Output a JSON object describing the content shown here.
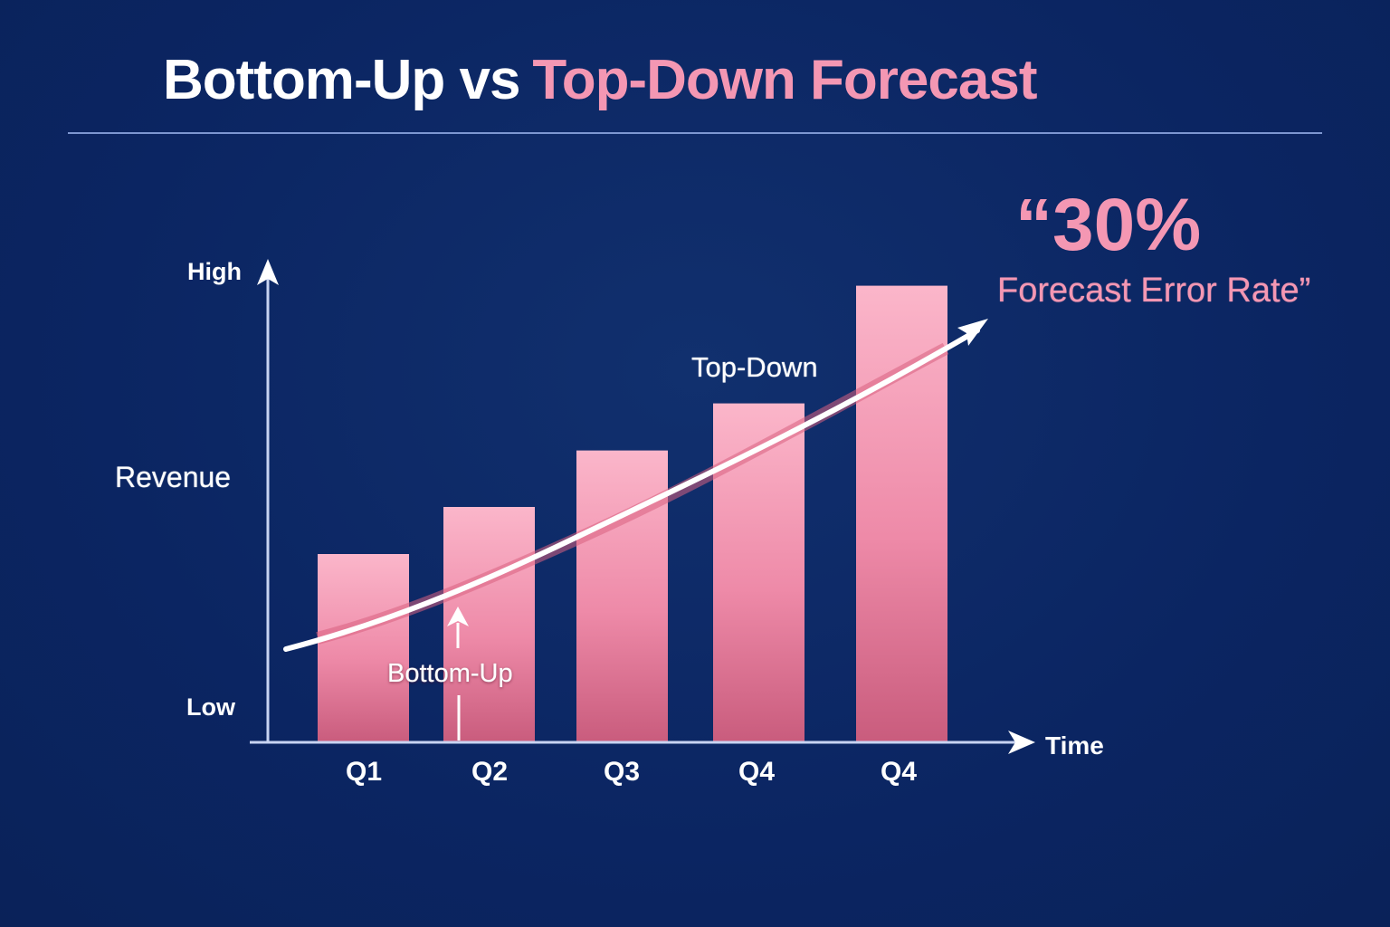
{
  "title": {
    "part1": "Bottom-Up vs",
    "part2": "Top-Down Forecast"
  },
  "colors": {
    "background": "#0c2766",
    "accent_pink": "#f497b3",
    "bar_top": "#fbb6ca",
    "bar_bottom": "#c95c7d",
    "axis": "#c8d4f2",
    "text": "#ffffff"
  },
  "axes": {
    "y_high": "High",
    "y_label": "Revenue",
    "y_low": "Low",
    "x_label": "Time"
  },
  "annotations": {
    "top_down": "Top-Down",
    "bottom_up": "Bottom-Up"
  },
  "callout": {
    "big": "“30%",
    "sub": "Forecast Error Rate”"
  },
  "chart_data": {
    "type": "bar",
    "title": "Bottom-Up vs Top-Down Forecast",
    "xlabel": "Time",
    "ylabel": "Revenue",
    "y_tick_labels": [
      "Low",
      "High"
    ],
    "ylim": [
      0,
      100
    ],
    "grid": false,
    "legend": null,
    "categories": [
      "Q1",
      "Q2",
      "Q3",
      "Q4",
      "Q4"
    ],
    "series": [
      {
        "name": "Revenue (bars)",
        "values": [
          40,
          50,
          62,
          72,
          97
        ]
      },
      {
        "name": "Trend line (arrow)",
        "type": "line",
        "values": [
          22,
          31,
          45,
          60,
          82
        ]
      }
    ],
    "annotations": [
      {
        "text": "Top-Down",
        "near": "Q4 (4th bar), above trend"
      },
      {
        "text": "Bottom-Up",
        "near": "Q2, arrow pointing up to trend"
      },
      {
        "text": "“30% Forecast Error Rate”",
        "position": "top-right"
      }
    ]
  }
}
